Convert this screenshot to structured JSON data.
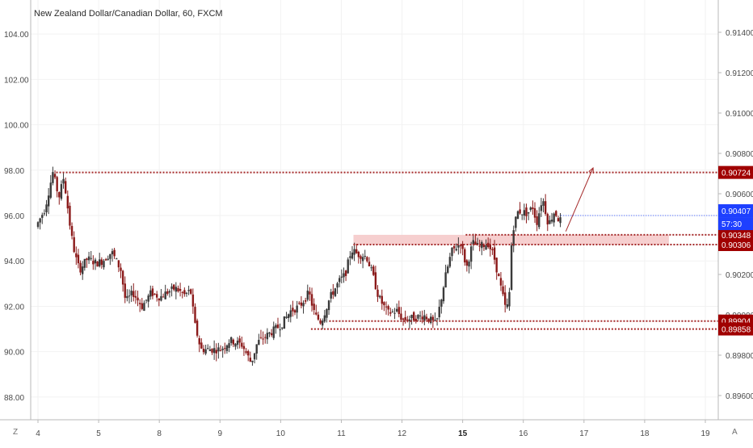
{
  "chart_data": {
    "type": "candlestick",
    "title": "New Zealand Dollar/Canadian Dollar, 60, FXCM",
    "left_axis": {
      "ticks": [
        "104.00",
        "102.00",
        "100.00",
        "98.00",
        "96.00",
        "94.00",
        "92.00",
        "90.00",
        "88.00"
      ],
      "values": [
        104,
        102,
        100,
        98,
        96,
        94,
        92,
        90,
        88
      ],
      "range": [
        87.0,
        105.5
      ]
    },
    "right_axis": {
      "ticks": [
        "0.91400",
        "0.91200",
        "0.91000",
        "0.90800",
        "0.90600",
        "0.90400",
        "0.90200",
        "0.90000",
        "0.89800",
        "0.89600"
      ],
      "values": [
        0.914,
        0.912,
        0.91,
        0.908,
        0.906,
        0.904,
        0.902,
        0.9,
        0.898,
        0.896
      ],
      "range": [
        0.8948,
        0.9156
      ]
    },
    "x_axis": {
      "ticks": [
        "4",
        "5",
        "8",
        "9",
        "10",
        "11",
        "12",
        "15",
        "16",
        "17",
        "18",
        "19"
      ],
      "bold": [
        "15"
      ],
      "range": [
        0,
        11
      ]
    },
    "series_path": [
      [
        0,
        95.5
      ],
      [
        0.15,
        96.3
      ],
      [
        0.28,
        97.9
      ],
      [
        0.38,
        96.8
      ],
      [
        0.46,
        97.7
      ],
      [
        0.58,
        95.2
      ],
      [
        0.65,
        94.2
      ],
      [
        0.72,
        93.6
      ],
      [
        0.85,
        94.1
      ],
      [
        1.0,
        93.9
      ],
      [
        1.1,
        94.0
      ],
      [
        1.25,
        94.4
      ],
      [
        1.4,
        93.6
      ],
      [
        1.48,
        92.2
      ],
      [
        1.6,
        92.6
      ],
      [
        1.75,
        92.0
      ],
      [
        1.9,
        92.6
      ],
      [
        2.05,
        92.4
      ],
      [
        2.15,
        92.6
      ],
      [
        2.3,
        92.8
      ],
      [
        2.45,
        92.5
      ],
      [
        2.55,
        92.7
      ],
      [
        2.62,
        91.2
      ],
      [
        2.72,
        90.1
      ],
      [
        2.9,
        90.1
      ],
      [
        3.05,
        90.1
      ],
      [
        3.2,
        90.5
      ],
      [
        3.4,
        90.3
      ],
      [
        3.55,
        89.5
      ],
      [
        3.65,
        90.4
      ],
      [
        3.85,
        90.8
      ],
      [
        4.05,
        91.2
      ],
      [
        4.2,
        91.8
      ],
      [
        4.35,
        92.0
      ],
      [
        4.5,
        92.6
      ],
      [
        4.6,
        91.6
      ],
      [
        4.7,
        91.3
      ],
      [
        4.85,
        92.4
      ],
      [
        5.0,
        93.1
      ],
      [
        5.1,
        93.4
      ],
      [
        5.2,
        94.5
      ],
      [
        5.3,
        94.3
      ],
      [
        5.45,
        94.2
      ],
      [
        5.55,
        93.4
      ],
      [
        5.65,
        92.4
      ],
      [
        5.8,
        91.7
      ],
      [
        5.95,
        91.8
      ],
      [
        6.05,
        91.4
      ],
      [
        6.25,
        91.5
      ],
      [
        6.4,
        91.6
      ],
      [
        6.5,
        91.4
      ],
      [
        6.6,
        91.2
      ],
      [
        6.75,
        93.3
      ],
      [
        6.85,
        94.4
      ],
      [
        7.0,
        94.8
      ],
      [
        7.1,
        93.7
      ],
      [
        7.2,
        94.8
      ],
      [
        7.3,
        94.6
      ],
      [
        7.45,
        94.8
      ],
      [
        7.55,
        94.2
      ],
      [
        7.65,
        93.0
      ],
      [
        7.75,
        91.8
      ],
      [
        7.8,
        92.3
      ],
      [
        7.85,
        95.3
      ],
      [
        7.95,
        96.2
      ],
      [
        8.1,
        96.1
      ],
      [
        8.2,
        96.4
      ],
      [
        8.25,
        95.6
      ],
      [
        8.35,
        96.8
      ],
      [
        8.45,
        95.6
      ],
      [
        8.55,
        96.2
      ],
      [
        8.62,
        95.8
      ]
    ],
    "annotations": {
      "price_levels": [
        {
          "id": "level_top",
          "left": 97.9,
          "right_label": "0.90724",
          "x_from": 0.3,
          "x_to": 11.0
        },
        {
          "id": "level_upper_a",
          "left": 95.15,
          "right_label": "0.90348",
          "x_from": 7.05,
          "x_to": 11.0
        },
        {
          "id": "level_upper_b",
          "left": 94.72,
          "right_label": "0.90306",
          "x_from": 5.2,
          "x_to": 11.0
        },
        {
          "id": "level_low_a",
          "left": 91.35,
          "right_label": "0.89904",
          "x_from": 4.8,
          "x_to": 11.0
        },
        {
          "id": "level_low_b",
          "left": 91.0,
          "right_label": "0.89858",
          "x_from": 4.5,
          "x_to": 11.0
        }
      ],
      "zone": {
        "from": 94.72,
        "to": 95.15,
        "x_from": 5.2,
        "x_to": 10.4
      },
      "arrow": {
        "from": [
          8.7,
          95.3
        ],
        "to": [
          9.15,
          98.1
        ]
      }
    },
    "current_price": {
      "label": "0.90407",
      "left": 96.0
    },
    "countdown": {
      "label": "57:30"
    },
    "colors": {
      "up": "#3a3a3a",
      "down": "#8b1a1a",
      "level": "#a52a2a",
      "zone": "#f4c7c7",
      "badge": "#a00000",
      "current": "#1e40ff"
    }
  },
  "corners": {
    "left": "Z",
    "right": "A"
  }
}
